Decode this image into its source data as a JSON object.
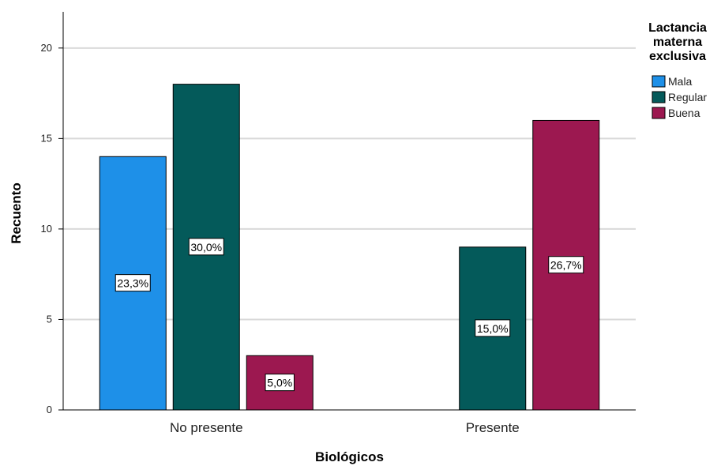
{
  "chart_data": {
    "type": "bar",
    "title": "",
    "xlabel": "Biológicos",
    "ylabel": "Recuento",
    "ylim": [
      0,
      22
    ],
    "yticks": [
      0,
      5,
      10,
      15,
      20
    ],
    "grid": true,
    "legend_position": "top-right",
    "legend_title": [
      "Lactancia",
      "materna",
      "exclusiva"
    ],
    "categories": [
      "No presente",
      "Presente"
    ],
    "series": [
      {
        "name": "Mala",
        "color": "#1e90e8",
        "values": [
          14,
          0
        ],
        "labels": [
          "23,3%",
          ""
        ]
      },
      {
        "name": "Regular",
        "color": "#045a5a",
        "values": [
          18,
          9
        ],
        "labels": [
          "30,0%",
          "15,0%"
        ]
      },
      {
        "name": "Buena",
        "color": "#9c1850",
        "values": [
          3,
          16
        ],
        "labels": [
          "5,0%",
          "26,7%"
        ]
      }
    ]
  }
}
